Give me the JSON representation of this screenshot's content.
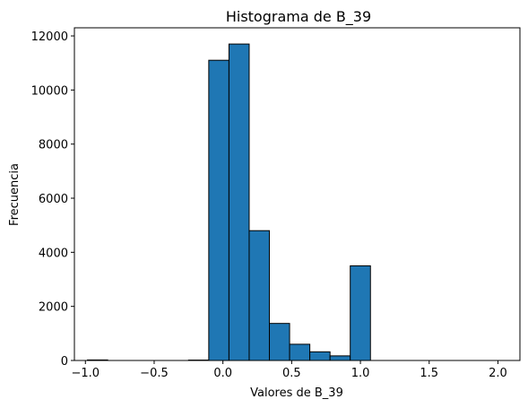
{
  "chart_data": {
    "type": "bar",
    "title": "Histograma de B_39",
    "xlabel": "Valores de B_39",
    "ylabel": "Frecuencia",
    "xlim": [
      -1.08,
      2.16
    ],
    "ylim": [
      0,
      12300
    ],
    "xticks": [
      -1.0,
      -0.5,
      0.0,
      0.5,
      1.0,
      1.5,
      2.0
    ],
    "xtick_labels": [
      "−1.0",
      "−0.5",
      "0.0",
      "0.5",
      "1.0",
      "1.5",
      "2.0"
    ],
    "yticks": [
      0,
      2000,
      4000,
      6000,
      8000,
      10000,
      12000
    ],
    "ytick_labels": [
      "0",
      "2000",
      "4000",
      "6000",
      "8000",
      "10000",
      "12000"
    ],
    "bins": [
      {
        "x0": -0.985,
        "x1": -0.838,
        "count": 20
      },
      {
        "x0": -0.838,
        "x1": -0.691,
        "count": 0
      },
      {
        "x0": -0.691,
        "x1": -0.544,
        "count": 0
      },
      {
        "x0": -0.544,
        "x1": -0.397,
        "count": 0
      },
      {
        "x0": -0.397,
        "x1": -0.25,
        "count": 0
      },
      {
        "x0": -0.25,
        "x1": -0.103,
        "count": 15
      },
      {
        "x0": -0.103,
        "x1": 0.044,
        "count": 11100
      },
      {
        "x0": 0.044,
        "x1": 0.191,
        "count": 11700
      },
      {
        "x0": 0.191,
        "x1": 0.338,
        "count": 4800
      },
      {
        "x0": 0.338,
        "x1": 0.485,
        "count": 1370
      },
      {
        "x0": 0.485,
        "x1": 0.632,
        "count": 600
      },
      {
        "x0": 0.632,
        "x1": 0.779,
        "count": 320
      },
      {
        "x0": 0.779,
        "x1": 0.926,
        "count": 170
      },
      {
        "x0": 0.926,
        "x1": 1.073,
        "count": 3500
      },
      {
        "x0": 1.073,
        "x1": 1.22,
        "count": 0
      },
      {
        "x0": 1.22,
        "x1": 1.367,
        "count": 0
      },
      {
        "x0": 1.367,
        "x1": 1.514,
        "count": 0
      },
      {
        "x0": 1.514,
        "x1": 1.661,
        "count": 0
      },
      {
        "x0": 1.661,
        "x1": 1.808,
        "count": 0
      },
      {
        "x0": 1.808,
        "x1": 1.955,
        "count": 0
      },
      {
        "x0": 1.955,
        "x1": 2.102,
        "count": 0
      }
    ],
    "bar_color": "#1f77b4",
    "edge_color": "#000000",
    "grid": false,
    "legend": "none"
  }
}
